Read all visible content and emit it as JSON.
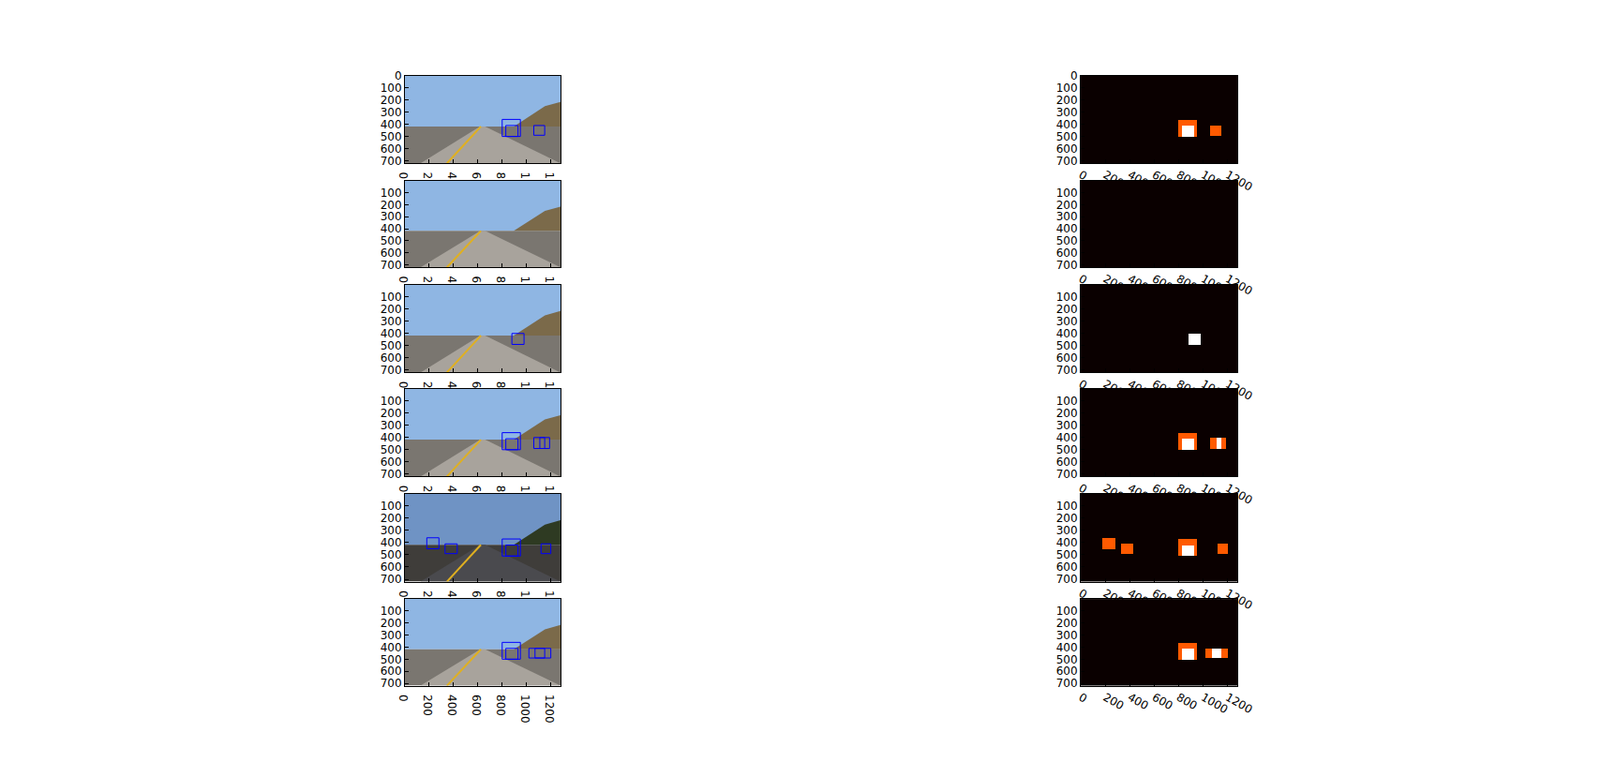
{
  "chart_data": [
    {
      "type": "image",
      "xlim": [
        0,
        1280
      ],
      "ylim": [
        720,
        0
      ],
      "xticks": [
        0,
        200,
        400,
        600,
        800,
        1000,
        1200
      ],
      "yticks": [
        0,
        100,
        200,
        300,
        400,
        500,
        600,
        700
      ],
      "color": "#0000ff",
      "boxes": [
        [
          800,
          360,
          950,
          500
        ],
        [
          830,
          410,
          930,
          500
        ],
        [
          1060,
          410,
          1150,
          490
        ]
      ]
    },
    {
      "type": "heatmap",
      "xlim": [
        0,
        1280
      ],
      "ylim": [
        720,
        0
      ],
      "xticks": [
        0,
        200,
        400,
        600,
        800,
        1000,
        1200
      ],
      "yticks": [
        0,
        100,
        200,
        300,
        400,
        500,
        600,
        700
      ],
      "boxes": [
        [
          800,
          360,
          950,
          500
        ],
        [
          830,
          410,
          930,
          500
        ],
        [
          1060,
          410,
          1150,
          490
        ]
      ]
    },
    {
      "type": "image",
      "xlim": [
        0,
        1280
      ],
      "ylim": [
        720,
        0
      ],
      "xticks": [
        0,
        200,
        400,
        600,
        800,
        1000,
        1200
      ],
      "yticks": [
        100,
        200,
        300,
        400,
        500,
        600,
        700
      ],
      "color": "#0000ff",
      "boxes": []
    },
    {
      "type": "heatmap",
      "xlim": [
        0,
        1280
      ],
      "ylim": [
        720,
        0
      ],
      "xticks": [
        0,
        200,
        400,
        600,
        800,
        1000,
        1200
      ],
      "yticks": [
        100,
        200,
        300,
        400,
        500,
        600,
        700
      ],
      "boxes": []
    },
    {
      "type": "image",
      "xlim": [
        0,
        1280
      ],
      "ylim": [
        720,
        0
      ],
      "xticks": [
        0,
        200,
        400,
        600,
        800,
        1000,
        1200
      ],
      "yticks": [
        100,
        200,
        300,
        400,
        500,
        600,
        700
      ],
      "color": "#0000ff",
      "boxes": [
        [
          880,
          400,
          980,
          490
        ]
      ]
    },
    {
      "type": "heatmap",
      "xlim": [
        0,
        1280
      ],
      "ylim": [
        720,
        0
      ],
      "xticks": [
        0,
        200,
        400,
        600,
        800,
        1000,
        1200
      ],
      "yticks": [
        100,
        200,
        300,
        400,
        500,
        600,
        700
      ],
      "boxes": [
        [
          880,
          400,
          980,
          490
        ]
      ]
    },
    {
      "type": "image",
      "xlim": [
        0,
        1280
      ],
      "ylim": [
        720,
        0
      ],
      "xticks": [
        0,
        200,
        400,
        600,
        800,
        1000,
        1200
      ],
      "yticks": [
        100,
        200,
        300,
        400,
        500,
        600,
        700
      ],
      "color": "#0000ff",
      "boxes": [
        [
          800,
          360,
          950,
          500
        ],
        [
          830,
          410,
          930,
          500
        ],
        [
          1060,
          400,
          1190,
          490
        ],
        [
          1110,
          400,
          1150,
          490
        ]
      ]
    },
    {
      "type": "heatmap",
      "xlim": [
        0,
        1280
      ],
      "ylim": [
        720,
        0
      ],
      "xticks": [
        0,
        200,
        400,
        600,
        800,
        1000,
        1200
      ],
      "yticks": [
        100,
        200,
        300,
        400,
        500,
        600,
        700
      ],
      "boxes": [
        [
          800,
          360,
          950,
          500
        ],
        [
          830,
          410,
          930,
          500
        ],
        [
          1060,
          400,
          1190,
          490
        ],
        [
          1110,
          400,
          1150,
          490
        ]
      ]
    },
    {
      "type": "image",
      "xlim": [
        0,
        1280
      ],
      "ylim": [
        720,
        0
      ],
      "xticks": [
        0,
        200,
        400,
        600,
        800,
        1000,
        1200
      ],
      "yticks": [
        100,
        200,
        300,
        400,
        500,
        600,
        700
      ],
      "color": "#0000ff",
      "boxes": [
        [
          180,
          360,
          280,
          450
        ],
        [
          330,
          410,
          430,
          490
        ],
        [
          800,
          370,
          950,
          510
        ],
        [
          830,
          420,
          930,
          510
        ],
        [
          1120,
          410,
          1200,
          490
        ]
      ]
    },
    {
      "type": "heatmap",
      "xlim": [
        0,
        1280
      ],
      "ylim": [
        720,
        0
      ],
      "xticks": [
        0,
        200,
        400,
        600,
        800,
        1000,
        1200
      ],
      "yticks": [
        100,
        200,
        300,
        400,
        500,
        600,
        700
      ],
      "boxes": [
        [
          180,
          360,
          280,
          450
        ],
        [
          330,
          410,
          430,
          490
        ],
        [
          800,
          370,
          950,
          510
        ],
        [
          830,
          420,
          930,
          510
        ],
        [
          1120,
          410,
          1200,
          490
        ]
      ]
    },
    {
      "type": "image",
      "xlim": [
        0,
        1280
      ],
      "ylim": [
        720,
        0
      ],
      "xticks": [
        0,
        200,
        400,
        600,
        800,
        1000,
        1200
      ],
      "yticks": [
        100,
        200,
        300,
        400,
        500,
        600,
        700
      ],
      "color": "#0000ff",
      "boxes": [
        [
          800,
          360,
          950,
          500
        ],
        [
          830,
          410,
          930,
          500
        ],
        [
          1020,
          410,
          1200,
          490
        ],
        [
          1070,
          410,
          1150,
          490
        ]
      ]
    },
    {
      "type": "heatmap",
      "xlim": [
        0,
        1280
      ],
      "ylim": [
        720,
        0
      ],
      "xticks": [
        0,
        200,
        400,
        600,
        800,
        1000,
        1200
      ],
      "yticks": [
        100,
        200,
        300,
        400,
        500,
        600,
        700
      ],
      "boxes": [
        [
          800,
          360,
          950,
          500
        ],
        [
          830,
          410,
          930,
          500
        ],
        [
          1020,
          410,
          1200,
          490
        ],
        [
          1070,
          410,
          1150,
          490
        ]
      ]
    }
  ]
}
